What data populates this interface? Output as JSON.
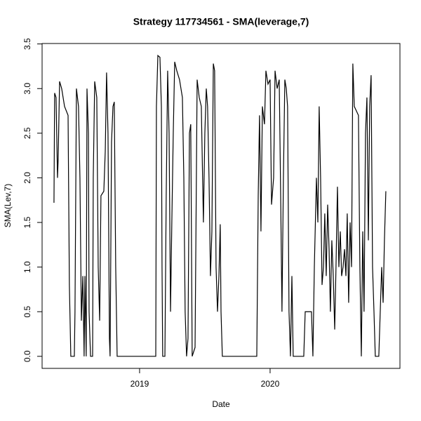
{
  "chart_data": {
    "type": "line",
    "title": "Strategy 117734561 - SMA(leverage,7)",
    "x_label": "Date",
    "y_label": "SMA(Lev,7)",
    "xlim": [
      2018.253,
      2020.995
    ],
    "xticks": [
      2019,
      2020
    ],
    "ylim": [
      -0.135,
      3.505
    ],
    "yticks": [
      {
        "value": 0,
        "label": "0.0"
      },
      0.5,
      {
        "value": 1,
        "label": "1.0"
      },
      1.5,
      {
        "value": 2,
        "label": "2.0"
      },
      2.5,
      {
        "value": 3,
        "label": "3.0"
      },
      3.5
    ],
    "grid": false,
    "color": "#000000",
    "x": [
      2018.344,
      2018.349,
      2018.36,
      2018.371,
      2018.376,
      2018.387,
      2018.403,
      2018.425,
      2018.452,
      2018.462,
      2018.473,
      2018.5,
      2018.505,
      2018.516,
      2018.532,
      2018.543,
      2018.554,
      2018.565,
      2018.575,
      2018.581,
      2018.591,
      2018.597,
      2018.608,
      2018.613,
      2018.624,
      2018.64,
      2018.645,
      2018.656,
      2018.672,
      2018.683,
      2018.694,
      2018.704,
      2018.726,
      2018.737,
      2018.747,
      2018.758,
      2018.769,
      2018.774,
      2018.785,
      2018.796,
      2018.806,
      2018.817,
      2018.828,
      2019.124,
      2019.129,
      2019.14,
      2019.156,
      2019.167,
      2019.172,
      2019.177,
      2019.194,
      2019.204,
      2019.215,
      2019.226,
      2019.237,
      2019.247,
      2019.258,
      2019.269,
      2019.285,
      2019.306,
      2019.328,
      2019.339,
      2019.349,
      2019.36,
      2019.371,
      2019.382,
      2019.392,
      2019.403,
      2019.425,
      2019.441,
      2019.457,
      2019.473,
      2019.489,
      2019.5,
      2019.511,
      2019.521,
      2019.532,
      2019.543,
      2019.554,
      2019.565,
      2019.575,
      2019.586,
      2019.597,
      2019.608,
      2019.618,
      2019.624,
      2019.634,
      2019.898,
      2019.909,
      2019.919,
      2019.93,
      2019.941,
      2019.957,
      2019.968,
      2019.984,
      2020.0,
      2020.011,
      2020.027,
      2020.038,
      2020.054,
      2020.07,
      2020.081,
      2020.091,
      2020.102,
      2020.113,
      2020.124,
      2020.134,
      2020.145,
      2020.156,
      2020.167,
      2020.177,
      2020.258,
      2020.269,
      2020.317,
      2020.328,
      2020.339,
      2020.355,
      2020.366,
      2020.376,
      2020.387,
      2020.398,
      2020.409,
      2020.419,
      2020.43,
      2020.441,
      2020.452,
      2020.462,
      2020.473,
      2020.484,
      2020.495,
      2020.505,
      2020.516,
      2020.527,
      2020.538,
      2020.548,
      2020.559,
      2020.57,
      2020.581,
      2020.591,
      2020.602,
      2020.613,
      2020.624,
      2020.634,
      2020.645,
      2020.661,
      2020.677,
      2020.688,
      2020.699,
      2020.71,
      2020.72,
      2020.731,
      2020.742,
      2020.753,
      2020.763,
      2020.774,
      2020.785,
      2020.796,
      2020.806,
      2020.833,
      2020.844,
      2020.855,
      2020.866,
      2020.876,
      2020.887
    ],
    "values": [
      1.72,
      2.95,
      2.9,
      2.0,
      2.2,
      3.08,
      3.0,
      2.8,
      2.7,
      0.8,
      0,
      0,
      0.5,
      3.0,
      2.8,
      2.0,
      0.4,
      0.9,
      0,
      0.9,
      0,
      3.0,
      2.5,
      0.5,
      0,
      0,
      2.0,
      3.08,
      2.9,
      1.0,
      0.4,
      1.8,
      1.85,
      2.3,
      3.18,
      2.5,
      0.2,
      0,
      2.4,
      2.8,
      2.85,
      1.0,
      0,
      0,
      2.8,
      3.37,
      3.35,
      2.8,
      1.0,
      0,
      0,
      1.8,
      3.2,
      2.5,
      0.5,
      1.5,
      2.5,
      3.3,
      3.2,
      3.1,
      2.9,
      2.0,
      0.5,
      0,
      0.2,
      2.5,
      2.6,
      0,
      0.1,
      3.1,
      2.9,
      2.8,
      1.5,
      2.5,
      3.0,
      2.8,
      2.0,
      0.9,
      1.4,
      3.28,
      3.2,
      1.0,
      0.5,
      0.9,
      1.48,
      0.5,
      0,
      0,
      1.8,
      2.7,
      1.4,
      2.8,
      2.6,
      3.2,
      3.05,
      3.1,
      1.7,
      2.0,
      3.2,
      3.0,
      3.1,
      1.8,
      0.5,
      2.0,
      3.1,
      3.0,
      2.8,
      0.5,
      0,
      0.9,
      0,
      0,
      0.5,
      0.5,
      0,
      1.0,
      2.0,
      1.5,
      2.8,
      2.0,
      0.8,
      1.0,
      1.6,
      0.9,
      1.7,
      1.2,
      0.5,
      1.3,
      0.9,
      0.3,
      1.0,
      1.9,
      1.0,
      1.4,
      0.9,
      1.0,
      1.2,
      0.9,
      1.6,
      0.6,
      1.5,
      1.0,
      3.28,
      2.8,
      2.75,
      2.7,
      1.0,
      0,
      1.4,
      0.5,
      2.5,
      2.9,
      1.3,
      2.8,
      3.15,
      1.0,
      0.5,
      0,
      0,
      0.5,
      1.0,
      0.6,
      1.3,
      1.85
    ]
  }
}
